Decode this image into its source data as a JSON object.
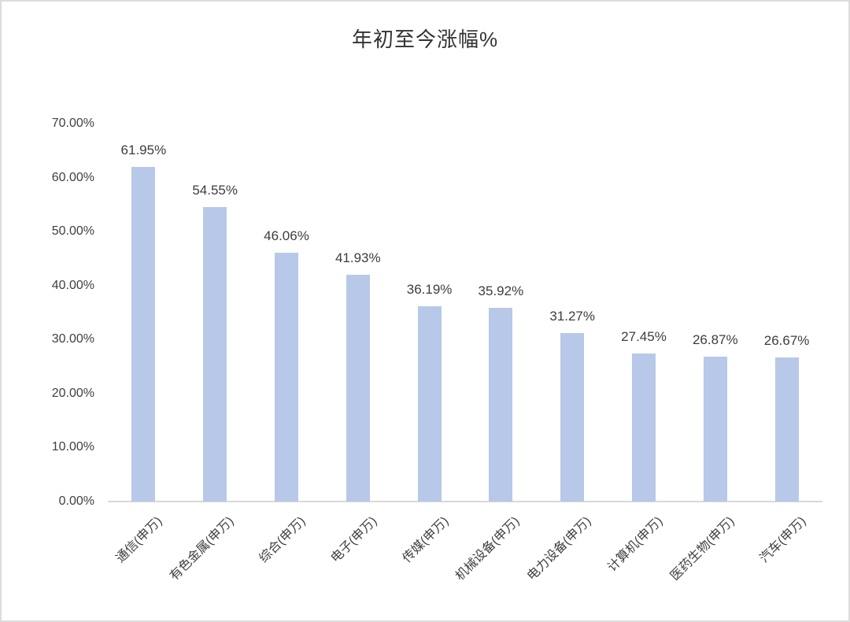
{
  "page": {
    "background": "#ffffff",
    "border_color": "#dcdcdc"
  },
  "chart_data": {
    "type": "bar",
    "title": "年初至今涨幅%",
    "xlabel": "",
    "ylabel": "",
    "categories": [
      "通信(申万)",
      "有色金属(申万)",
      "综合(申万)",
      "电子(申万)",
      "传媒(申万)",
      "机械设备(申万)",
      "电力设备(申万)",
      "计算机(申万)",
      "医药生物(申万)",
      "汽车(申万)"
    ],
    "values": [
      61.95,
      54.55,
      46.06,
      41.93,
      36.19,
      35.92,
      31.27,
      27.45,
      26.87,
      26.67
    ],
    "data_labels": [
      "61.95%",
      "54.55%",
      "46.06%",
      "41.93%",
      "36.19%",
      "35.92%",
      "31.27%",
      "27.45%",
      "26.87%",
      "26.67%"
    ],
    "ylim": [
      0,
      70
    ],
    "yticks": [
      {
        "value": 70,
        "label": "70.00%"
      },
      {
        "value": 60,
        "label": "60.00%"
      },
      {
        "value": 50,
        "label": "50.00%"
      },
      {
        "value": 40,
        "label": "40.00%"
      },
      {
        "value": 30,
        "label": "30.00%"
      },
      {
        "value": 20,
        "label": "20.00%"
      },
      {
        "value": 10,
        "label": "10.00%"
      },
      {
        "value": 0,
        "label": "0.00%"
      }
    ],
    "grid": false,
    "legend": false,
    "category_label_rotation_deg": 45,
    "bar_color": "#b7c8e8",
    "axis_line_color": "#d9d9d9",
    "text_color": "#404040",
    "title_color": "#333333"
  }
}
